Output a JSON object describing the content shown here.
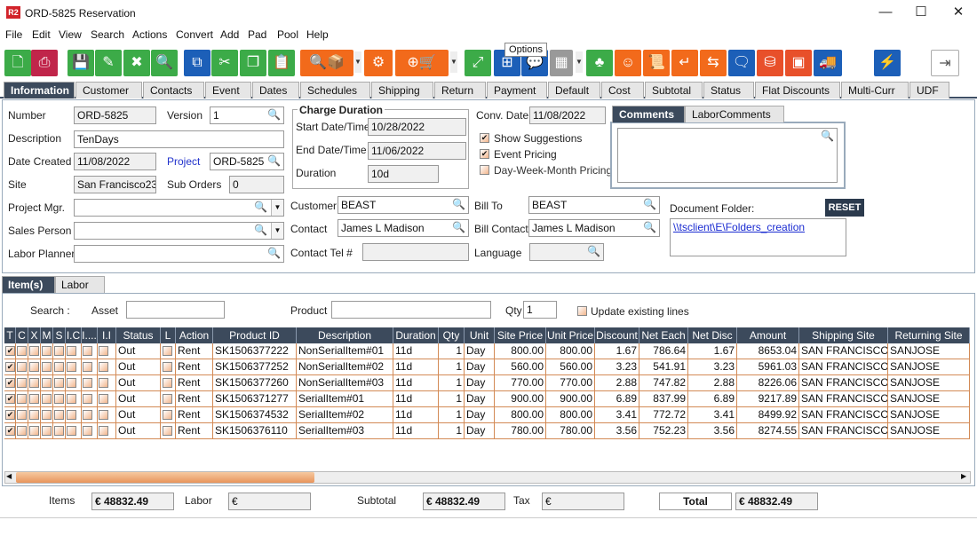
{
  "window": {
    "logo": "R2",
    "title": "ORD-5825 Reservation",
    "minimize": "—",
    "maximize": "☐",
    "close": "✕"
  },
  "menu": [
    "File",
    "Edit",
    "View",
    "Search",
    "Actions",
    "Convert",
    "Add",
    "Pad",
    "Pool",
    "Help"
  ],
  "toolbar": {
    "tooltip": "Options",
    "buttons": [
      {
        "icon": "new-document-icon",
        "color": "#3cab48",
        "glyph": "🗋"
      },
      {
        "icon": "print-icon",
        "color": "#c0254a",
        "glyph": "⎙"
      },
      {
        "icon": "save-icon",
        "color": "#3cab48",
        "glyph": "💾"
      },
      {
        "icon": "edit-pencil-icon",
        "color": "#3cab48",
        "glyph": "✎"
      },
      {
        "icon": "delete-x-icon",
        "color": "#3cab48",
        "glyph": "✖"
      },
      {
        "icon": "search-icon",
        "color": "#3cab48",
        "glyph": "🔍"
      },
      {
        "icon": "copy-zero-icon",
        "color": "#1c5fb8",
        "glyph": "⧉"
      },
      {
        "icon": "cut-scissors-icon",
        "color": "#3cab48",
        "glyph": "✂"
      },
      {
        "icon": "copy-icon",
        "color": "#3cab48",
        "glyph": "❐"
      },
      {
        "icon": "paste-icon",
        "color": "#3cab48",
        "glyph": "📋"
      },
      {
        "icon": "search-package-icon",
        "color": "#f26a1b",
        "glyph": "🔍📦"
      },
      {
        "icon": "components-icon",
        "color": "#f26a1b",
        "glyph": "⚙"
      },
      {
        "icon": "add-po-cart-icon",
        "color": "#f26a1b",
        "glyph": "⊕🛒"
      },
      {
        "icon": "expand-icon",
        "color": "#3cab48",
        "glyph": "⤢"
      },
      {
        "icon": "hierarchy-icon",
        "color": "#1c5fb8",
        "glyph": "⊞"
      },
      {
        "icon": "message-icon",
        "color": "#1c5fb8",
        "glyph": "💬"
      },
      {
        "icon": "calendar-disabled-icon",
        "color": "#999999",
        "glyph": "▦"
      },
      {
        "icon": "tree-icon",
        "color": "#3cab48",
        "glyph": "♣"
      },
      {
        "icon": "smiley-icon",
        "color": "#f26a1b",
        "glyph": "☺"
      },
      {
        "icon": "scroll-list-icon",
        "color": "#f26a1b",
        "glyph": "📜"
      },
      {
        "icon": "return-icon",
        "color": "#f26a1b",
        "glyph": "↵"
      },
      {
        "icon": "box-return-icon",
        "color": "#f26a1b",
        "glyph": "⇆"
      },
      {
        "icon": "chat-zero-icon",
        "color": "#1c5fb8",
        "glyph": "🗨"
      },
      {
        "icon": "coins-add-icon",
        "color": "#e8502a",
        "glyph": "⛁"
      },
      {
        "icon": "safe-icon",
        "color": "#e8502a",
        "glyph": "▣"
      },
      {
        "icon": "truck-check-icon",
        "color": "#1c5fb8",
        "glyph": "🚚"
      },
      {
        "icon": "lightning-icon",
        "color": "#1c5fb8",
        "glyph": "⚡"
      },
      {
        "icon": "exit-icon",
        "color": "#ffffff",
        "glyph": "⇥"
      }
    ]
  },
  "tabs": [
    "Information",
    "Customer",
    "Contacts",
    "Event",
    "Dates",
    "Schedules",
    "Shipping",
    "Return",
    "Payment",
    "Default",
    "Cost",
    "Subtotal",
    "Status",
    "Flat Discounts",
    "Multi-Curr",
    "UDF"
  ],
  "info": {
    "number_label": "Number",
    "number": "ORD-5825",
    "version_label": "Version",
    "version": "1",
    "description_label": "Description",
    "description": "TenDays",
    "date_created_label": "Date Created",
    "date_created": "11/08/2022",
    "project_label": "Project",
    "project": "ORD-5825",
    "site_label": "Site",
    "site": "San Francisco23",
    "sub_orders_label": "Sub Orders",
    "sub_orders": "0",
    "project_mgr_label": "Project Mgr.",
    "project_mgr": "",
    "sales_person_label": "Sales Person",
    "sales_person": "",
    "labor_planner_label": "Labor Planner",
    "labor_planner": "",
    "charge_duration_label": "Charge Duration",
    "start_label": "Start Date/Time",
    "start": "10/28/2022",
    "end_label": "End Date/Time",
    "end": "11/06/2022",
    "duration_label": "Duration",
    "duration": "10d",
    "conv_date_label": "Conv. Date",
    "conv_date": "11/08/2022",
    "show_suggestions": "Show Suggestions",
    "event_pricing": "Event Pricing",
    "dwm_pricing": "Day-Week-Month Pricing",
    "comments_tab": "Comments",
    "labor_comments_tab": "LaborComments",
    "comments": "",
    "customer_label": "Customer",
    "customer": "BEAST",
    "contact_label": "Contact",
    "contact": "James L Madison",
    "contact_tel_label": "Contact Tel #",
    "contact_tel": "",
    "bill_to_label": "Bill To",
    "bill_to": "BEAST",
    "bill_contact_label": "Bill Contact",
    "bill_contact": "James L Madison",
    "language_label": "Language",
    "language": "",
    "doc_folder_label": "Document Folder:",
    "reset": "RESET",
    "doc_folder_link": "\\\\tsclient\\E\\Folders_creation"
  },
  "lower_tabs": [
    "Item(s)",
    "Labor"
  ],
  "filter": {
    "search_label": "Search :",
    "asset_label": "Asset",
    "asset": "",
    "product_label": "Product",
    "product": "",
    "qty_label": "Qty",
    "qty": "1",
    "update_label": "Update existing lines"
  },
  "grid": {
    "columns": [
      "T",
      "C",
      "X",
      "M",
      "S",
      "I.C",
      "I....",
      "I.I",
      "Status",
      "L",
      "Action",
      "Product ID",
      "Description",
      "Duration",
      "Qty",
      "Unit",
      "Site Price",
      "Unit Price",
      "Discount",
      "Net Each",
      "Net Disc",
      "Amount",
      "Shipping Site",
      "Returning Site"
    ],
    "rows": [
      {
        "status": "Out",
        "action": "Rent",
        "product_id": "SK1506377222",
        "description": "NonSerialItem#01",
        "duration": "11d",
        "qty": "1",
        "unit": "Day",
        "site_price": "800.00",
        "unit_price": "800.00",
        "discount": "1.67",
        "net_each": "786.64",
        "net_disc": "1.67",
        "amount": "8653.04",
        "shipping_site": "SAN FRANCISCO",
        "returning_site": "SANJOSE"
      },
      {
        "status": "Out",
        "action": "Rent",
        "product_id": "SK1506377252",
        "description": "NonSerialItem#02",
        "duration": "11d",
        "qty": "1",
        "unit": "Day",
        "site_price": "560.00",
        "unit_price": "560.00",
        "discount": "3.23",
        "net_each": "541.91",
        "net_disc": "3.23",
        "amount": "5961.03",
        "shipping_site": "SAN FRANCISCO",
        "returning_site": "SANJOSE"
      },
      {
        "status": "Out",
        "action": "Rent",
        "product_id": "SK1506377260",
        "description": "NonSerialItem#03",
        "duration": "11d",
        "qty": "1",
        "unit": "Day",
        "site_price": "770.00",
        "unit_price": "770.00",
        "discount": "2.88",
        "net_each": "747.82",
        "net_disc": "2.88",
        "amount": "8226.06",
        "shipping_site": "SAN FRANCISCO",
        "returning_site": "SANJOSE"
      },
      {
        "status": "Out",
        "action": "Rent",
        "product_id": "SK1506371277",
        "description": "SerialItem#01",
        "duration": "11d",
        "qty": "1",
        "unit": "Day",
        "site_price": "900.00",
        "unit_price": "900.00",
        "discount": "6.89",
        "net_each": "837.99",
        "net_disc": "6.89",
        "amount": "9217.89",
        "shipping_site": "SAN FRANCISCO",
        "returning_site": "SANJOSE"
      },
      {
        "status": "Out",
        "action": "Rent",
        "product_id": "SK1506374532",
        "description": "SerialItem#02",
        "duration": "11d",
        "qty": "1",
        "unit": "Day",
        "site_price": "800.00",
        "unit_price": "800.00",
        "discount": "3.41",
        "net_each": "772.72",
        "net_disc": "3.41",
        "amount": "8499.92",
        "shipping_site": "SAN FRANCISCO",
        "returning_site": "SANJOSE"
      },
      {
        "status": "Out",
        "action": "Rent",
        "product_id": "SK1506376110",
        "description": "SerialItem#03",
        "duration": "11d",
        "qty": "1",
        "unit": "Day",
        "site_price": "780.00",
        "unit_price": "780.00",
        "discount": "3.56",
        "net_each": "752.23",
        "net_disc": "3.56",
        "amount": "8274.55",
        "shipping_site": "SAN FRANCISCO",
        "returning_site": "SANJOSE"
      }
    ]
  },
  "footer": {
    "items_label": "Items",
    "items": "€ 48832.49",
    "labor_label": "Labor",
    "labor": "€",
    "subtotal_label": "Subtotal",
    "subtotal": "€ 48832.49",
    "tax_label": "Tax",
    "tax": "€",
    "total_label": "Total",
    "total": "€ 48832.49"
  }
}
